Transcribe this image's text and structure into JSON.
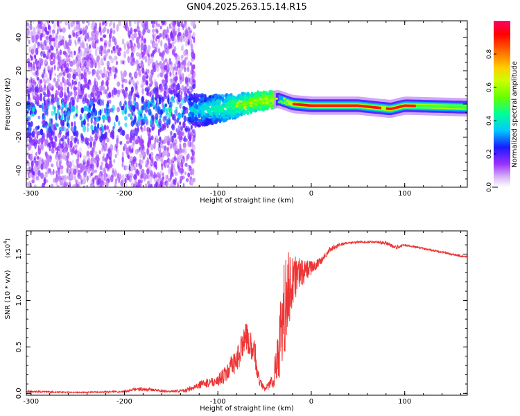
{
  "title": "GN04.2025.263.15.14.R15",
  "colors": {
    "snr_line": "#ee3333",
    "background": "#ffffff",
    "axis": "#000000",
    "colormap": [
      "#ffffff",
      "#c9a6f0",
      "#7f00ff",
      "#0000ff",
      "#00bfff",
      "#00ff80",
      "#80ff00",
      "#ffff00",
      "#ff8000",
      "#ff0000",
      "#ff0066"
    ]
  },
  "chart_data": [
    {
      "type": "heatmap",
      "title": "GN04.2025.263.15.14.R15",
      "xlabel": "Height of straight line (km)",
      "ylabel": "Frequency (Hz)",
      "xlim": [
        -305,
        167
      ],
      "ylim": [
        -50,
        50
      ],
      "x_ticks": [
        -300,
        -200,
        -100,
        0,
        100
      ],
      "x_tick_labels": [
        "-300",
        "-200",
        "-100",
        "0",
        "100"
      ],
      "y_ticks": [
        -40,
        -20,
        0,
        20,
        40
      ],
      "y_tick_labels": [
        "-40",
        "-20",
        "0",
        "20",
        "40"
      ],
      "ridge": {
        "description_points": [
          [
            -300,
            -8
          ],
          [
            -200,
            -7
          ],
          [
            -150,
            -5
          ],
          [
            -100,
            -3
          ],
          [
            -60,
            1
          ],
          [
            -35,
            3
          ],
          [
            -20,
            0
          ],
          [
            0,
            -1
          ],
          [
            50,
            -1
          ],
          [
            85,
            -3
          ],
          [
            100,
            -1
          ],
          [
            167,
            -2
          ]
        ],
        "peak_amplitude_range_x": [
          -20,
          110
        ]
      },
      "colorbar": {
        "label": "Normalized spectral amplitude",
        "range": [
          0.0,
          1.0
        ],
        "ticks": [
          0.0,
          0.2,
          0.4,
          0.6,
          0.8
        ],
        "tick_labels": [
          "0.0",
          "0.2",
          "0.4",
          "0.6",
          "0.8"
        ]
      }
    },
    {
      "type": "line",
      "xlabel": "Height of straight line (km)",
      "ylabel": "SNR (10 * v/v)",
      "scale_label": "(x10",
      "scale_exponent": "4",
      "scale_suffix": ")",
      "xlim": [
        -305,
        167
      ],
      "ylim": [
        -0.02,
        1.75
      ],
      "x_ticks": [
        -300,
        -200,
        -100,
        0,
        100
      ],
      "x_tick_labels": [
        "-300",
        "-200",
        "-100",
        "0",
        "100"
      ],
      "y_ticks": [
        0.0,
        0.5,
        1.0,
        1.5
      ],
      "y_tick_labels": [
        "0.0",
        "0.5",
        "1.0",
        "1.5"
      ],
      "series": [
        {
          "name": "SNR",
          "x": [
            -305,
            -250,
            -200,
            -185,
            -150,
            -135,
            -120,
            -100,
            -90,
            -80,
            -70,
            -60,
            -55,
            -50,
            -45,
            -40,
            -35,
            -30,
            -25,
            -20,
            -15,
            -10,
            -5,
            0,
            10,
            20,
            30,
            40,
            50,
            60,
            70,
            80,
            90,
            100,
            110,
            120,
            130,
            140,
            150,
            160,
            167
          ],
          "values": [
            0.02,
            0.01,
            0.02,
            0.05,
            0.02,
            0.03,
            0.09,
            0.14,
            0.22,
            0.35,
            0.62,
            0.4,
            0.12,
            0.05,
            0.08,
            0.2,
            0.45,
            0.85,
            1.1,
            1.22,
            1.28,
            1.3,
            1.33,
            1.35,
            1.42,
            1.55,
            1.6,
            1.62,
            1.63,
            1.63,
            1.63,
            1.62,
            1.57,
            1.6,
            1.58,
            1.56,
            1.54,
            1.52,
            1.5,
            1.48,
            1.47
          ],
          "noise_amplitude": [
            0.01,
            0.005,
            0.01,
            0.02,
            0.01,
            0.02,
            0.04,
            0.06,
            0.1,
            0.15,
            0.15,
            0.15,
            0.05,
            0.03,
            0.05,
            0.15,
            0.35,
            0.5,
            0.5,
            0.3,
            0.2,
            0.15,
            0.1,
            0.08,
            0.04,
            0.03,
            0.02,
            0.01,
            0.01,
            0.01,
            0.01,
            0.02,
            0.02,
            0.01,
            0.01,
            0.01,
            0.01,
            0.01,
            0.01,
            0.01,
            0.01
          ]
        }
      ]
    }
  ]
}
